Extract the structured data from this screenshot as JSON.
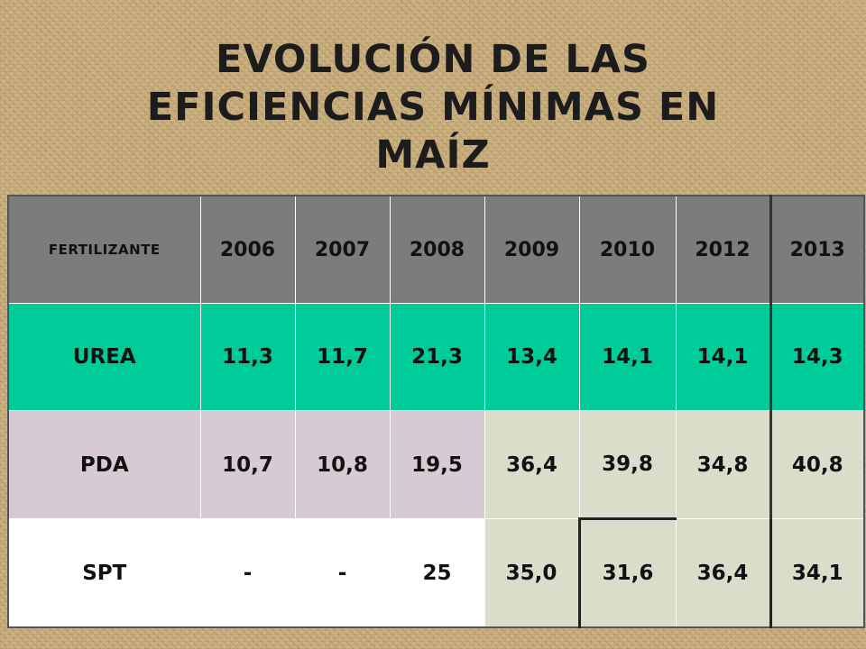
{
  "title": {
    "line1": "EVOLUCIÓN DE LAS",
    "line2": "EFICIENCIAS MÍNIMAS EN",
    "line3": "MAÍZ"
  },
  "table": {
    "header": [
      "FERTILIZANTE",
      "2006",
      "2007",
      "2008",
      "2009",
      "2010",
      "2012",
      "2013"
    ],
    "rows": [
      {
        "name": "UREA",
        "values": [
          "11,3",
          "11,7",
          "21,3",
          "13,4",
          "14,1",
          "14,1",
          "14,3"
        ]
      },
      {
        "name": "PDA",
        "values": [
          "10,7",
          "10,8",
          "19,5",
          "36,4",
          "39,8",
          "34,8",
          "40,8"
        ]
      },
      {
        "name": "SPT",
        "values": [
          "-",
          "-",
          "25",
          "35,0",
          "31,6",
          "36,4",
          "34,1"
        ]
      }
    ]
  },
  "colors": {
    "header_bg": "#7c7c7c",
    "urea_row_bg": "#00cc99",
    "pda_row_bg": "#d6cbd3",
    "spt_row_bg": "#ffffff",
    "highlight_cells_bg": "#dcdccb",
    "background": "#c9ae7e"
  }
}
